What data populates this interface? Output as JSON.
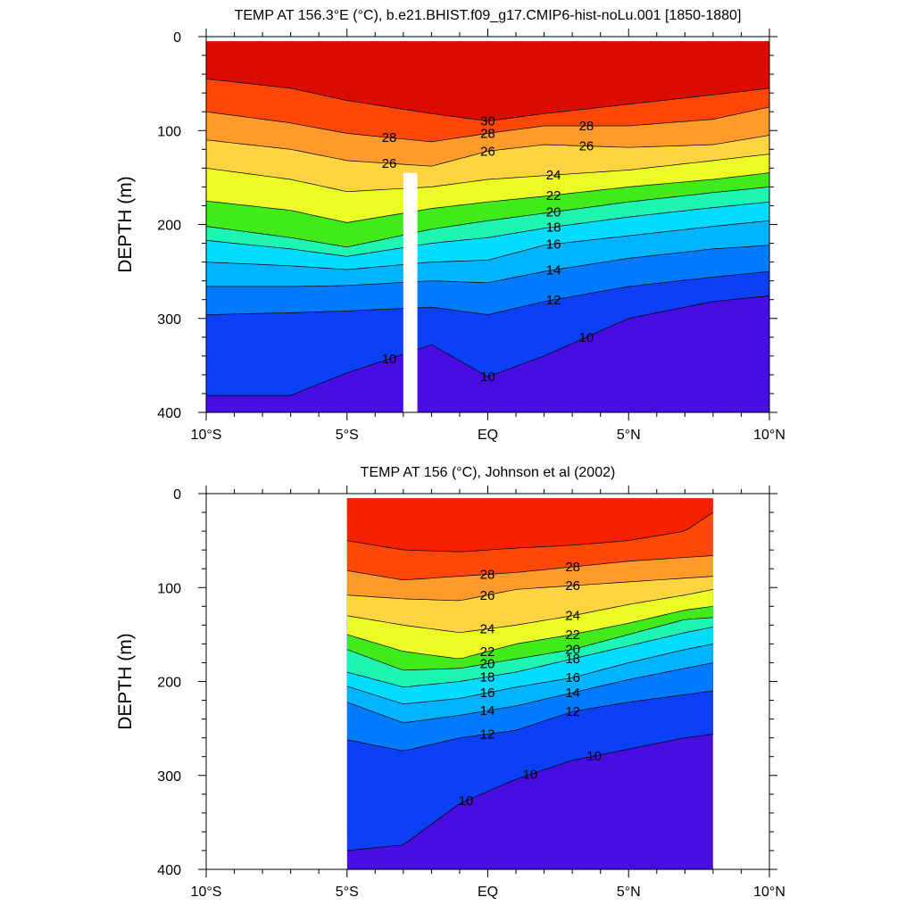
{
  "figure": {
    "panels": [
      {
        "title": "TEMP AT 156.3°E (°C), b.e21.BHIST.f09_g17.CMIP6-hist-noLu.001 [1850-1880]",
        "ylabel": "DEPTH (m)",
        "y_ticks": [
          "0",
          "100",
          "200",
          "300",
          "400"
        ],
        "x_ticks": [
          "10°S",
          "5°S",
          "EQ",
          "5°N",
          "10°N"
        ]
      },
      {
        "title": "TEMP AT 156 (°C), Johnson et al (2002)",
        "ylabel": "DEPTH (m)",
        "y_ticks": [
          "0",
          "100",
          "200",
          "300",
          "400"
        ],
        "x_ticks": [
          "10°S",
          "5°S",
          "EQ",
          "5°N",
          "10°N"
        ]
      }
    ]
  },
  "chart_data": [
    {
      "type": "heatmap",
      "title": "TEMP AT 156.3°E (°C), b.e21.BHIST.f09_g17.CMIP6-hist-noLu.001 [1850-1880]",
      "xlabel": "",
      "ylabel": "DEPTH (m)",
      "xlim": [
        -10,
        10
      ],
      "ylim": [
        400,
        0
      ],
      "data_xlim": [
        -10,
        10
      ],
      "missing_column": [
        -3,
        -2.5
      ],
      "missing_column_top": 145,
      "contour_levels": [
        8,
        9,
        10,
        11,
        12,
        13,
        14,
        15,
        16,
        17,
        18,
        19,
        20,
        21,
        22,
        23,
        24,
        25,
        26,
        27,
        28,
        29,
        30
      ],
      "x_tick_values": [
        -10,
        -5,
        0,
        5,
        10
      ],
      "y_tick_values": [
        0,
        100,
        200,
        300,
        400
      ],
      "contours": [
        {
          "level": 30,
          "x": [
            -10,
            -7,
            -5,
            -2,
            0,
            2,
            5,
            8,
            10
          ],
          "depth": [
            45,
            55,
            68,
            82,
            90,
            82,
            72,
            62,
            55
          ]
        },
        {
          "level": 28,
          "x": [
            -10,
            -7,
            -5,
            -2,
            0,
            2,
            5,
            8,
            10
          ],
          "depth": [
            80,
            92,
            103,
            112,
            103,
            95,
            95,
            88,
            75
          ]
        },
        {
          "level": 26,
          "x": [
            -10,
            -7,
            -5,
            -2,
            0,
            2,
            5,
            8,
            10
          ],
          "depth": [
            110,
            120,
            132,
            138,
            122,
            115,
            118,
            115,
            105
          ]
        },
        {
          "level": 24,
          "x": [
            -10,
            -7,
            -5,
            -2,
            0,
            2,
            5,
            8,
            10
          ],
          "depth": [
            140,
            152,
            165,
            160,
            152,
            148,
            142,
            132,
            125
          ]
        },
        {
          "level": 22,
          "x": [
            -10,
            -7,
            -5,
            -2,
            0,
            2,
            5,
            8,
            10
          ],
          "depth": [
            175,
            185,
            198,
            183,
            176,
            170,
            160,
            152,
            145
          ]
        },
        {
          "level": 20,
          "x": [
            -10,
            -7,
            -5,
            -2,
            0,
            2,
            5,
            8,
            10
          ],
          "depth": [
            202,
            214,
            224,
            205,
            196,
            188,
            176,
            166,
            160
          ]
        },
        {
          "level": 18,
          "x": [
            -10,
            -7,
            -5,
            -2,
            0,
            2,
            5,
            8,
            10
          ],
          "depth": [
            217,
            226,
            234,
            220,
            214,
            204,
            192,
            182,
            176
          ]
        },
        {
          "level": 16,
          "x": [
            -10,
            -7,
            -5,
            -2,
            0,
            2,
            5,
            8,
            10
          ],
          "depth": [
            240,
            244,
            248,
            240,
            238,
            222,
            212,
            202,
            196
          ]
        },
        {
          "level": 14,
          "x": [
            -10,
            -7,
            -5,
            -2,
            0,
            2,
            5,
            8,
            10
          ],
          "depth": [
            266,
            266,
            265,
            260,
            262,
            250,
            236,
            226,
            222
          ]
        },
        {
          "level": 12,
          "x": [
            -10,
            -7,
            -5,
            -2,
            0,
            2,
            5,
            8,
            10
          ],
          "depth": [
            296,
            294,
            292,
            288,
            296,
            282,
            266,
            256,
            250
          ]
        },
        {
          "level": 10,
          "x": [
            -10,
            -7,
            -5,
            -2,
            0,
            2,
            5,
            8,
            10
          ],
          "depth": [
            382,
            382,
            358,
            328,
            362,
            340,
            300,
            282,
            276
          ]
        }
      ],
      "contour_labels": [
        "30",
        "28",
        "28",
        "28",
        "26",
        "26",
        "26",
        "24",
        "24",
        "22",
        "22",
        "20",
        "20",
        "18",
        "18",
        "16",
        "16",
        "14",
        "14",
        "12",
        "12",
        "10",
        "10",
        "10"
      ]
    },
    {
      "type": "heatmap",
      "title": "TEMP AT 156 (°C), Johnson et al (2002)",
      "xlabel": "",
      "ylabel": "DEPTH (m)",
      "xlim": [
        -10,
        10
      ],
      "ylim": [
        400,
        0
      ],
      "data_xlim": [
        -5,
        8
      ],
      "contour_levels": [
        8,
        9,
        10,
        11,
        12,
        13,
        14,
        15,
        16,
        17,
        18,
        19,
        20,
        21,
        22,
        23,
        24,
        25,
        26,
        27,
        28,
        29
      ],
      "x_tick_values": [
        -10,
        -5,
        0,
        5,
        10
      ],
      "y_tick_values": [
        0,
        100,
        200,
        300,
        400
      ],
      "contours": [
        {
          "level": 29,
          "x": [
            -5,
            -3,
            -1,
            1,
            3,
            5,
            7,
            8
          ],
          "depth": [
            50,
            60,
            62,
            58,
            55,
            50,
            40,
            20
          ]
        },
        {
          "level": 28,
          "x": [
            -5,
            -3,
            -1,
            1,
            3,
            5,
            7,
            8
          ],
          "depth": [
            82,
            92,
            88,
            84,
            78,
            72,
            68,
            66
          ]
        },
        {
          "level": 26,
          "x": [
            -5,
            -3,
            -1,
            1,
            3,
            5,
            7,
            8
          ],
          "depth": [
            108,
            112,
            114,
            102,
            98,
            94,
            90,
            88
          ]
        },
        {
          "level": 24,
          "x": [
            -5,
            -3,
            -1,
            1,
            3,
            5,
            7,
            8
          ],
          "depth": [
            130,
            140,
            148,
            140,
            130,
            118,
            108,
            102
          ]
        },
        {
          "level": 22,
          "x": [
            -5,
            -3,
            -1,
            1,
            3,
            5,
            7,
            8
          ],
          "depth": [
            150,
            168,
            176,
            160,
            150,
            138,
            124,
            120
          ]
        },
        {
          "level": 20,
          "x": [
            -5,
            -3,
            -1,
            1,
            3,
            5,
            7,
            8
          ],
          "depth": [
            166,
            188,
            186,
            176,
            166,
            150,
            134,
            132
          ]
        },
        {
          "level": 18,
          "x": [
            -5,
            -3,
            -1,
            1,
            3,
            5,
            7,
            8
          ],
          "depth": [
            190,
            206,
            200,
            190,
            176,
            162,
            148,
            142
          ]
        },
        {
          "level": 16,
          "x": [
            -5,
            -3,
            -1,
            1,
            3,
            5,
            7,
            8
          ],
          "depth": [
            205,
            224,
            218,
            206,
            196,
            180,
            166,
            160
          ]
        },
        {
          "level": 14,
          "x": [
            -5,
            -3,
            -1,
            1,
            3,
            5,
            7,
            8
          ],
          "depth": [
            222,
            244,
            236,
            226,
            212,
            198,
            186,
            180
          ]
        },
        {
          "level": 12,
          "x": [
            -5,
            -3,
            -1,
            1,
            3,
            5,
            7,
            8
          ],
          "depth": [
            262,
            274,
            260,
            252,
            232,
            222,
            214,
            210
          ]
        },
        {
          "level": 10,
          "x": [
            -5,
            -3,
            -1,
            1,
            3,
            5,
            7,
            8
          ],
          "depth": [
            380,
            374,
            330,
            304,
            284,
            272,
            260,
            256
          ]
        }
      ],
      "contour_labels": [
        "28",
        "28",
        "26",
        "26",
        "24",
        "24",
        "22",
        "22",
        "20",
        "20",
        "18",
        "18",
        "16",
        "16",
        "14",
        "14",
        "12",
        "12",
        "10",
        "10",
        "10"
      ]
    }
  ]
}
